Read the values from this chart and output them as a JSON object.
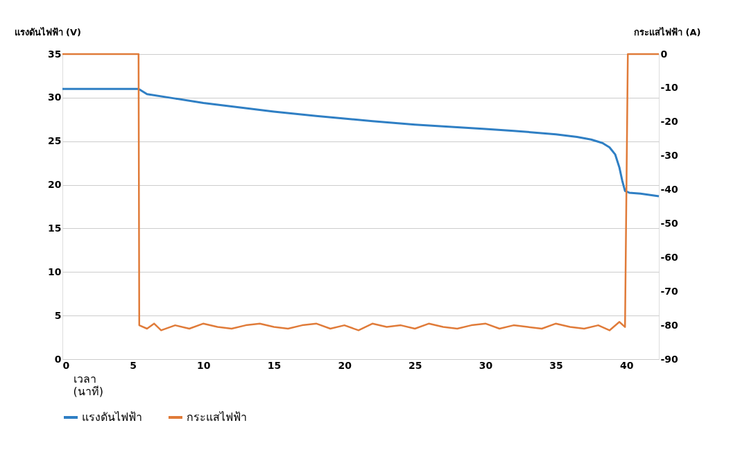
{
  "chart_data": {
    "type": "line",
    "xlabel": "เวลา (นาที)",
    "ylabel": "แรงดันไฟฟ้า (V)",
    "y2label": "กระแสไฟฟ้า (A)",
    "xlim": [
      0,
      42.3
    ],
    "xticks": [
      0,
      5,
      10,
      15,
      20,
      25,
      30,
      35,
      40
    ],
    "ylim": [
      0,
      35
    ],
    "yticks": [
      0,
      5,
      10,
      15,
      20,
      25,
      30,
      35
    ],
    "y2lim": [
      -90,
      0
    ],
    "y2ticks": [
      -90,
      -80,
      -70,
      -60,
      -50,
      -40,
      -30,
      -20,
      -10,
      0
    ],
    "grid": "y",
    "legend": "bottom",
    "marker": "none",
    "line_style": "solid",
    "series": [
      {
        "name": "แรงดันไฟฟ้า",
        "color": "#2f7fc4",
        "x": [
          0,
          2,
          4,
          5.4,
          6,
          8,
          10,
          12,
          15,
          18,
          20,
          22,
          25,
          28,
          30,
          32,
          35,
          36.5,
          37.5,
          38.3,
          38.8,
          39.2,
          39.5,
          39.7,
          39.9,
          40.2,
          41,
          42.3
        ],
        "values": [
          31,
          31,
          31,
          31,
          30.4,
          29.9,
          29.4,
          29.0,
          28.4,
          27.9,
          27.6,
          27.3,
          26.9,
          26.6,
          26.4,
          26.2,
          25.8,
          25.5,
          25.2,
          24.8,
          24.3,
          23.5,
          22.0,
          20.5,
          19.3,
          19.1,
          19.0,
          18.7
        ]
      },
      {
        "name": "กระแสไฟฟ้า",
        "color": "#e07b39",
        "axis": "y2",
        "x": [
          0,
          5.4,
          5.45,
          6,
          6.5,
          7,
          8,
          9,
          10,
          11,
          12,
          13,
          14,
          15,
          16,
          17,
          18,
          19,
          20,
          21,
          22,
          23,
          24,
          25,
          26,
          27,
          28,
          29,
          30,
          31,
          32,
          33,
          34,
          35,
          36,
          37,
          38,
          38.8,
          39.5,
          39.9,
          40.1,
          42.3
        ],
        "values": [
          0,
          0,
          -80,
          -81,
          -79.5,
          -81.5,
          -80,
          -81,
          -79.5,
          -80.5,
          -81,
          -80,
          -79.5,
          -80.5,
          -81,
          -80,
          -79.5,
          -81,
          -80,
          -81.5,
          -79.5,
          -80.5,
          -80,
          -81,
          -79.5,
          -80.5,
          -81,
          -80,
          -79.5,
          -81,
          -80,
          -80.5,
          -81,
          -79.5,
          -80.5,
          -81,
          -80,
          -81.5,
          -79,
          -80.5,
          0,
          0
        ]
      }
    ]
  }
}
